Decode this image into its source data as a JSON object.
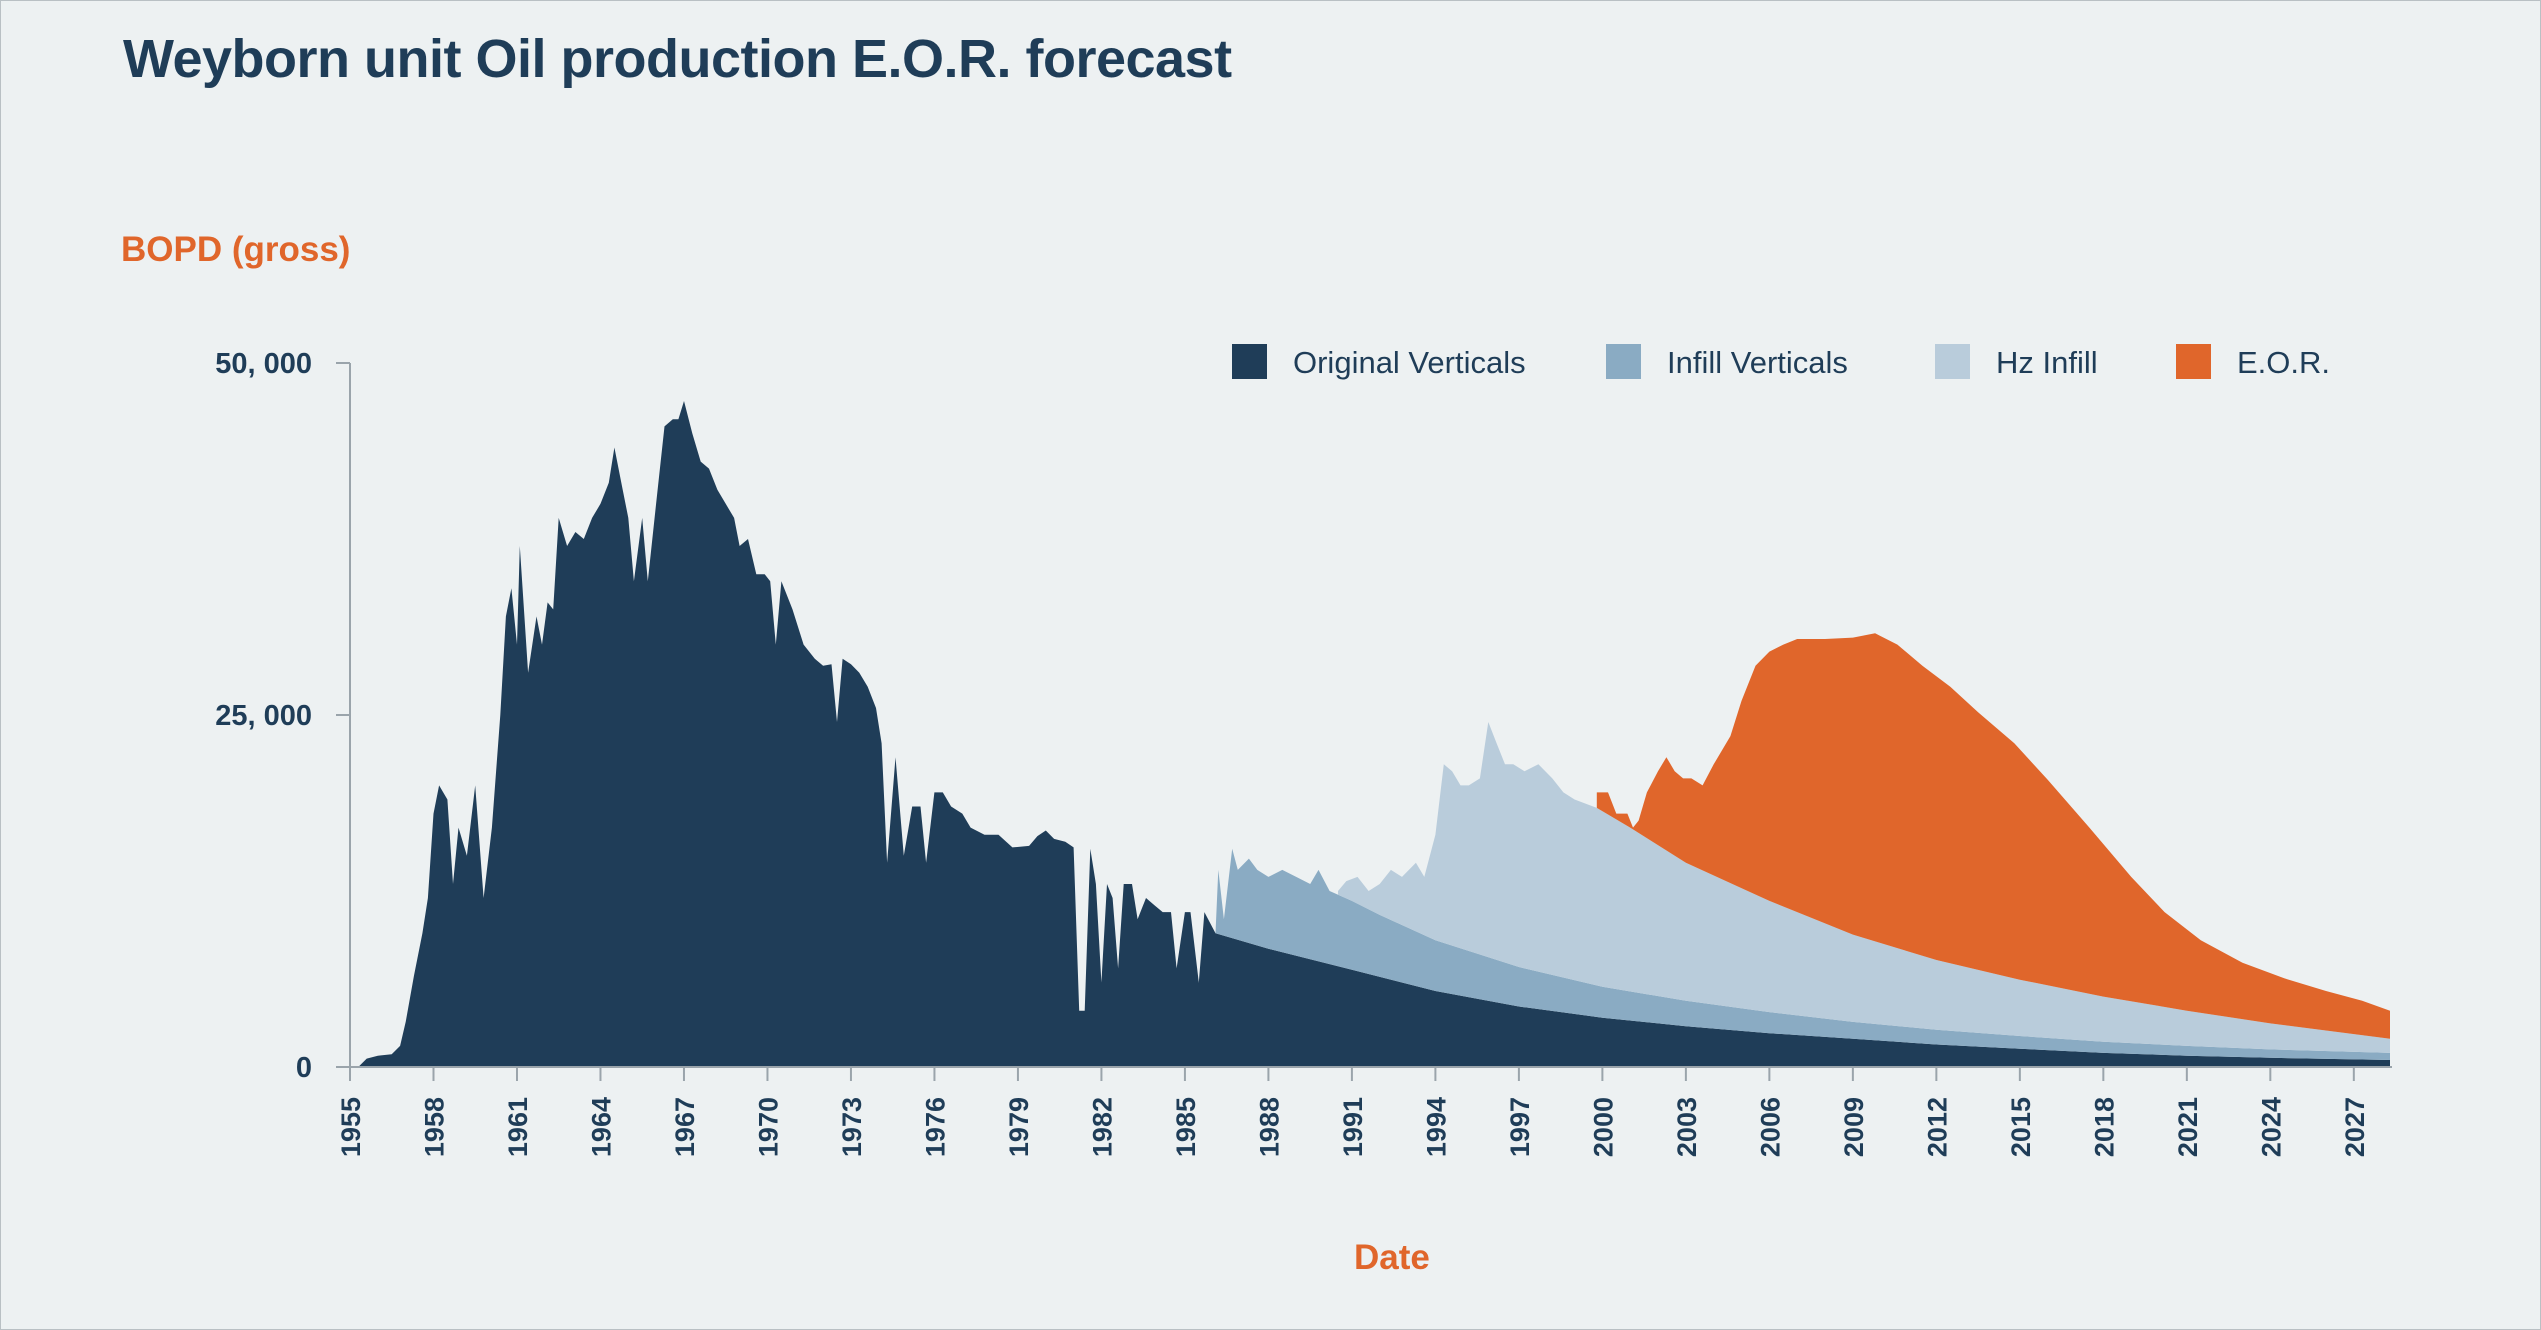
{
  "title": "Weyborn unit Oil production E.O.R. forecast",
  "chart_data": {
    "type": "area",
    "stacked": true,
    "title": "Weyborn unit Oil production E.O.R. forecast",
    "ylabel": "BOPD (gross)",
    "xlabel": "Date",
    "xlim": [
      1955,
      2028.3
    ],
    "ylim": [
      0,
      50000
    ],
    "y_ticks": [
      "0",
      "25, 000",
      "50, 000"
    ],
    "y_tick_values": [
      0,
      25000,
      50000
    ],
    "x_ticks": [
      "1955",
      "1958",
      "1961",
      "1964",
      "1967",
      "1970",
      "1973",
      "1976",
      "1979",
      "1982",
      "1985",
      "1988",
      "1991",
      "1994",
      "1997",
      "2000",
      "2003",
      "2006",
      "2009",
      "2012",
      "2015",
      "2018",
      "2021",
      "2024",
      "2027"
    ],
    "x_tick_values": [
      1955,
      1958,
      1961,
      1964,
      1967,
      1970,
      1973,
      1976,
      1979,
      1982,
      1985,
      1988,
      1991,
      1994,
      1997,
      2000,
      2003,
      2006,
      2009,
      2012,
      2015,
      2018,
      2021,
      2024,
      2027
    ],
    "legend_position": "top-right",
    "grid": false,
    "series": [
      {
        "name": "Original Verticals",
        "color": "#1f3d58",
        "points": [
          [
            1955.3,
            0
          ],
          [
            1955.6,
            600
          ],
          [
            1956.0,
            800
          ],
          [
            1956.5,
            900
          ],
          [
            1956.8,
            1500
          ],
          [
            1957.0,
            3200
          ],
          [
            1957.3,
            6500
          ],
          [
            1957.6,
            9500
          ],
          [
            1957.8,
            12000
          ],
          [
            1958.0,
            18000
          ],
          [
            1958.2,
            20000
          ],
          [
            1958.5,
            19000
          ],
          [
            1958.7,
            13000
          ],
          [
            1958.9,
            17000
          ],
          [
            1959.2,
            15000
          ],
          [
            1959.5,
            20000
          ],
          [
            1959.8,
            12000
          ],
          [
            1960.1,
            17000
          ],
          [
            1960.4,
            25000
          ],
          [
            1960.6,
            32000
          ],
          [
            1960.8,
            34000
          ],
          [
            1961.0,
            30000
          ],
          [
            1961.1,
            37000
          ],
          [
            1961.4,
            28000
          ],
          [
            1961.7,
            32000
          ],
          [
            1961.9,
            30000
          ],
          [
            1962.1,
            33000
          ],
          [
            1962.3,
            32500
          ],
          [
            1962.5,
            39000
          ],
          [
            1962.8,
            37000
          ],
          [
            1963.1,
            38000
          ],
          [
            1963.4,
            37500
          ],
          [
            1963.7,
            39000
          ],
          [
            1964.0,
            40000
          ],
          [
            1964.3,
            41500
          ],
          [
            1964.5,
            44000
          ],
          [
            1964.8,
            41000
          ],
          [
            1965.0,
            39000
          ],
          [
            1965.2,
            34500
          ],
          [
            1965.5,
            39000
          ],
          [
            1965.7,
            34500
          ],
          [
            1966.0,
            40000
          ],
          [
            1966.3,
            45500
          ],
          [
            1966.6,
            46000
          ],
          [
            1966.8,
            46000
          ],
          [
            1967.0,
            47300
          ],
          [
            1967.3,
            45000
          ],
          [
            1967.6,
            43000
          ],
          [
            1967.9,
            42500
          ],
          [
            1968.2,
            41000
          ],
          [
            1968.5,
            40000
          ],
          [
            1968.8,
            39000
          ],
          [
            1969.0,
            37000
          ],
          [
            1969.3,
            37500
          ],
          [
            1969.6,
            35000
          ],
          [
            1969.9,
            35000
          ],
          [
            1970.1,
            34500
          ],
          [
            1970.3,
            30000
          ],
          [
            1970.5,
            34500
          ],
          [
            1970.9,
            32500
          ],
          [
            1971.3,
            30000
          ],
          [
            1971.7,
            29000
          ],
          [
            1972.0,
            28500
          ],
          [
            1972.3,
            28600
          ],
          [
            1972.5,
            24500
          ],
          [
            1972.7,
            29000
          ],
          [
            1973.0,
            28600
          ],
          [
            1973.3,
            28000
          ],
          [
            1973.6,
            27000
          ],
          [
            1973.9,
            25500
          ],
          [
            1974.1,
            23000
          ],
          [
            1974.3,
            14500
          ],
          [
            1974.6,
            22000
          ],
          [
            1974.9,
            15000
          ],
          [
            1975.2,
            18500
          ],
          [
            1975.5,
            18500
          ],
          [
            1975.7,
            14500
          ],
          [
            1976.0,
            19500
          ],
          [
            1976.3,
            19500
          ],
          [
            1976.6,
            18500
          ],
          [
            1977.0,
            18000
          ],
          [
            1977.3,
            17000
          ],
          [
            1977.8,
            16500
          ],
          [
            1978.3,
            16500
          ],
          [
            1978.8,
            15600
          ],
          [
            1979.4,
            15700
          ],
          [
            1979.7,
            16400
          ],
          [
            1980.0,
            16800
          ],
          [
            1980.3,
            16200
          ],
          [
            1980.7,
            16000
          ],
          [
            1981.0,
            15600
          ],
          [
            1981.2,
            4000
          ],
          [
            1981.4,
            4000
          ],
          [
            1981.6,
            15500
          ],
          [
            1981.8,
            13000
          ],
          [
            1982.0,
            6000
          ],
          [
            1982.2,
            13000
          ],
          [
            1982.4,
            12000
          ],
          [
            1982.6,
            7000
          ],
          [
            1982.8,
            13000
          ],
          [
            1983.1,
            13000
          ],
          [
            1983.3,
            10500
          ],
          [
            1983.6,
            12000
          ],
          [
            1983.9,
            11500
          ],
          [
            1984.2,
            11000
          ],
          [
            1984.5,
            11000
          ],
          [
            1984.7,
            7000
          ],
          [
            1985.0,
            11000
          ],
          [
            1985.2,
            11000
          ],
          [
            1985.5,
            6000
          ],
          [
            1985.7,
            11000
          ],
          [
            1986.1,
            9500
          ],
          [
            1988.0,
            8400
          ],
          [
            1991.0,
            6900
          ],
          [
            1994.0,
            5400
          ],
          [
            1997.0,
            4300
          ],
          [
            2000.0,
            3500
          ],
          [
            2003.0,
            2900
          ],
          [
            2006.0,
            2400
          ],
          [
            2009.0,
            2000
          ],
          [
            2012.0,
            1600
          ],
          [
            2015.0,
            1300
          ],
          [
            2018.0,
            1000
          ],
          [
            2021.0,
            800
          ],
          [
            2024.0,
            650
          ],
          [
            2028.3,
            500
          ]
        ]
      },
      {
        "name": "Infill Verticals",
        "color": "#8aabc3",
        "top_points": [
          [
            1986.1,
            9500
          ],
          [
            1986.2,
            14000
          ],
          [
            1986.4,
            10500
          ],
          [
            1986.7,
            15500
          ],
          [
            1986.9,
            14000
          ],
          [
            1987.3,
            14800
          ],
          [
            1987.6,
            14000
          ],
          [
            1988.0,
            13500
          ],
          [
            1988.5,
            14000
          ],
          [
            1989.0,
            13500
          ],
          [
            1989.5,
            13000
          ],
          [
            1989.8,
            14000
          ],
          [
            1990.2,
            12500
          ],
          [
            1991.0,
            11800
          ],
          [
            1992.0,
            10800
          ],
          [
            1994.0,
            9000
          ],
          [
            1997.0,
            7100
          ],
          [
            2000.0,
            5700
          ],
          [
            2003.0,
            4700
          ],
          [
            2006.0,
            3900
          ],
          [
            2009.0,
            3200
          ],
          [
            2012.0,
            2650
          ],
          [
            2015.0,
            2200
          ],
          [
            2018.0,
            1800
          ],
          [
            2021.0,
            1500
          ],
          [
            2024.0,
            1250
          ],
          [
            2028.3,
            1000
          ]
        ]
      },
      {
        "name": "Hz Infill",
        "color": "#b9ccdb",
        "top_points": [
          [
            1990.5,
            12500
          ],
          [
            1990.8,
            13200
          ],
          [
            1991.2,
            13500
          ],
          [
            1991.6,
            12500
          ],
          [
            1992.0,
            13000
          ],
          [
            1992.4,
            14000
          ],
          [
            1992.8,
            13500
          ],
          [
            1993.3,
            14500
          ],
          [
            1993.6,
            13500
          ],
          [
            1994.0,
            16500
          ],
          [
            1994.3,
            21500
          ],
          [
            1994.6,
            21000
          ],
          [
            1994.9,
            20000
          ],
          [
            1995.2,
            20000
          ],
          [
            1995.6,
            20500
          ],
          [
            1995.9,
            24500
          ],
          [
            1996.2,
            23000
          ],
          [
            1996.5,
            21500
          ],
          [
            1996.8,
            21500
          ],
          [
            1997.2,
            21000
          ],
          [
            1997.7,
            21500
          ],
          [
            1998.2,
            20500
          ],
          [
            1998.6,
            19500
          ],
          [
            1999.0,
            19000
          ],
          [
            1999.8,
            18400
          ],
          [
            2001.0,
            17000
          ],
          [
            2003.0,
            14500
          ],
          [
            2006.0,
            11800
          ],
          [
            2009.0,
            9400
          ],
          [
            2012.0,
            7600
          ],
          [
            2015.0,
            6200
          ],
          [
            2018.0,
            5000
          ],
          [
            2021.0,
            4000
          ],
          [
            2024.0,
            3100
          ],
          [
            2028.3,
            2000
          ]
        ]
      },
      {
        "name": "E.O.R.",
        "color": "#e0662b",
        "top_points": [
          [
            1999.8,
            19500
          ],
          [
            2000.2,
            19500
          ],
          [
            2000.5,
            18000
          ],
          [
            2000.9,
            18000
          ],
          [
            2001.1,
            17000
          ],
          [
            2001.3,
            17500
          ],
          [
            2001.6,
            19500
          ],
          [
            2002.0,
            21000
          ],
          [
            2002.3,
            22000
          ],
          [
            2002.6,
            21000
          ],
          [
            2002.9,
            20500
          ],
          [
            2003.2,
            20500
          ],
          [
            2003.6,
            20000
          ],
          [
            2004.0,
            21500
          ],
          [
            2004.6,
            23500
          ],
          [
            2005.0,
            26000
          ],
          [
            2005.5,
            28500
          ],
          [
            2006.0,
            29500
          ],
          [
            2006.5,
            30000
          ],
          [
            2007.0,
            30400
          ],
          [
            2008.0,
            30400
          ],
          [
            2009.0,
            30500
          ],
          [
            2009.8,
            30800
          ],
          [
            2010.6,
            30000
          ],
          [
            2011.5,
            28500
          ],
          [
            2012.5,
            27000
          ],
          [
            2013.5,
            25200
          ],
          [
            2014.8,
            23000
          ],
          [
            2016.0,
            20400
          ],
          [
            2017.5,
            17000
          ],
          [
            2019.0,
            13500
          ],
          [
            2020.2,
            11000
          ],
          [
            2021.5,
            9000
          ],
          [
            2023.0,
            7400
          ],
          [
            2024.5,
            6300
          ],
          [
            2026.0,
            5400
          ],
          [
            2027.3,
            4700
          ],
          [
            2028.3,
            4000
          ]
        ]
      }
    ]
  }
}
